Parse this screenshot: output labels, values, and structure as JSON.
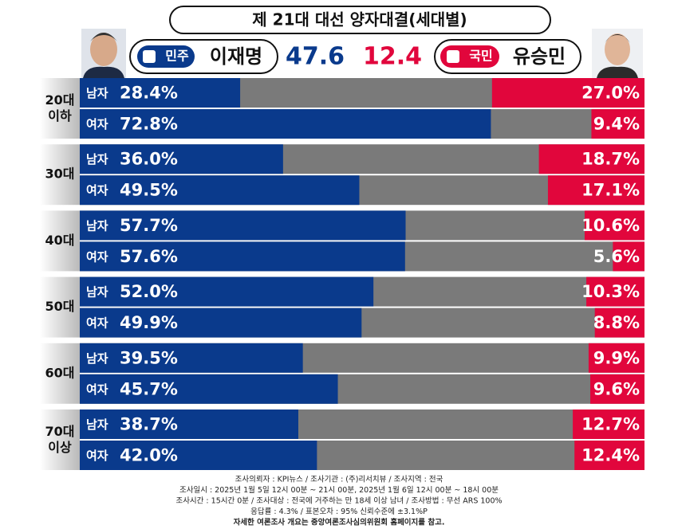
{
  "chart_data": {
    "type": "bar",
    "title": "제 21대 대선 양자대결(세대별)",
    "groups": [
      "20대\n이하",
      "30대",
      "40대",
      "50대",
      "60대",
      "70대\n이상"
    ],
    "categories": [
      "남자",
      "여자",
      "남자",
      "여자",
      "남자",
      "여자",
      "남자",
      "여자",
      "남자",
      "여자",
      "남자",
      "여자"
    ],
    "xlim": [
      0,
      100
    ],
    "rest_color": "#7a7a7a",
    "series": [
      {
        "name": "이재명",
        "party": "민주",
        "color": "#0a3a8c",
        "total": 47.6,
        "values": [
          28.4,
          72.8,
          36.0,
          49.5,
          57.7,
          57.6,
          52.0,
          49.9,
          39.5,
          45.7,
          38.7,
          42.0
        ],
        "value_labels": [
          "28.4%",
          "72.8%",
          "36.0%",
          "49.5%",
          "57.7%",
          "57.6%",
          "52.0%",
          "49.9%",
          "39.5%",
          "45.7%",
          "38.7%",
          "42.0%"
        ]
      },
      {
        "name": "유승민",
        "party": "국민",
        "color": "#e1063c",
        "total": 12.4,
        "values": [
          27.0,
          9.4,
          18.7,
          17.1,
          10.6,
          5.6,
          10.3,
          8.8,
          9.9,
          9.6,
          12.7,
          12.4
        ],
        "value_labels": [
          "27.0%",
          "9.4%",
          "18.7%",
          "17.1%",
          "10.6%",
          "5.6%",
          "10.3%",
          "8.8%",
          "9.9%",
          "9.6%",
          "12.7%",
          "12.4%"
        ]
      }
    ],
    "notes": [
      "조사의뢰자 : KPI뉴스 / 조사기관 : (주)리서치뷰 / 조사지역 : 전국",
      "조사일시 : 2025년 1월 5일 12시 00분 ~ 21시 00분, 2025년 1월 6일 12시 00분 ~ 18시 00분",
      "조사시간 : 15시간 0분 / 조사대상 : 전국에 거주하는 만 18세 이상 남녀 / 조사방법 : 무선 ARS 100%",
      "응답률 : 4.3% / 표본오차 : 95% 신뢰수준에 ±3.1%P",
      "자세한 여론조사 개요는 중앙여론조사심의위원회 홈페이지를 참고."
    ]
  }
}
